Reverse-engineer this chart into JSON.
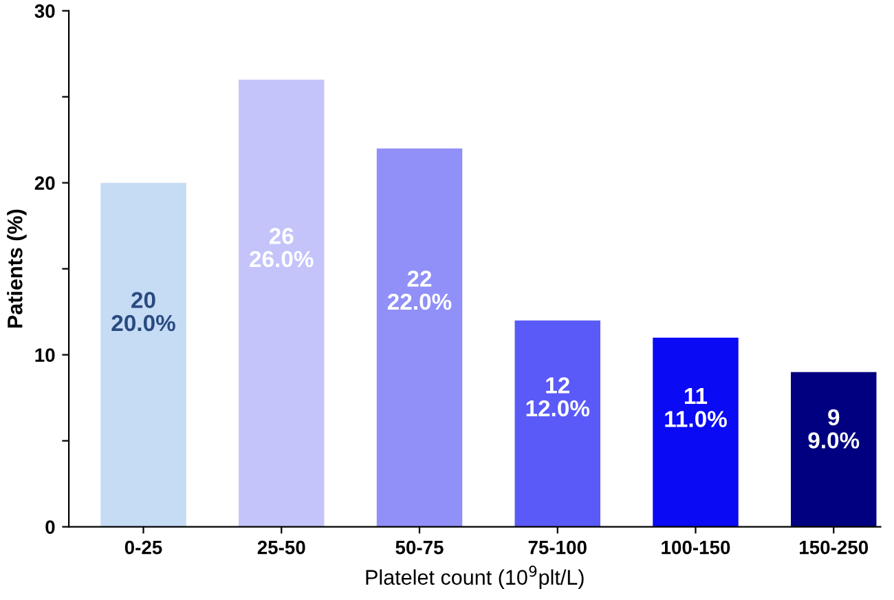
{
  "chart_data": {
    "type": "bar",
    "xlabel": "Platelet count (10$^{9}$plt/L)",
    "ylabel": "Patients (%)",
    "categories": [
      "0-25",
      "25-50",
      "50-75",
      "75-100",
      "100-150",
      "150-250"
    ],
    "values": [
      20,
      26,
      22,
      12,
      11,
      9
    ],
    "colors": [
      "#c6dcf5",
      "#c4c4fb",
      "#9090f8",
      "#5a5af8",
      "#0a0af5",
      "#000080"
    ],
    "value_labels": [
      "20\n20.0%",
      "26\n26.0%",
      "22\n22.0%",
      "12\n12.0%",
      "11\n11.0%",
      "9\n9.0%"
    ],
    "ylim": [
      0,
      30
    ],
    "yticks": [
      0,
      {
        "value": 5,
        "label": null
      },
      10,
      {
        "value": 15,
        "label": null
      },
      20,
      {
        "value": 25,
        "label": null
      },
      30
    ],
    "grid": false,
    "legend": false
  }
}
